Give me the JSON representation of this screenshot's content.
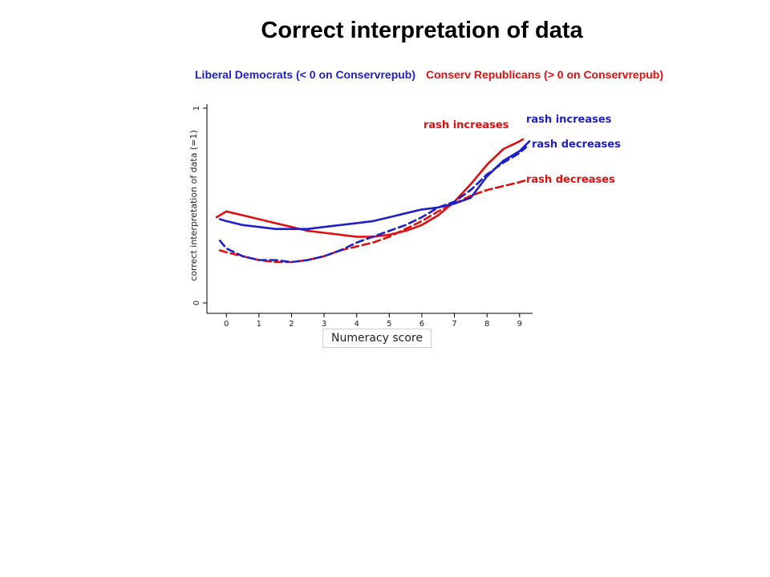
{
  "title": "Correct interpretation of data",
  "subtitles": {
    "democrats": "Liberal Democrats (< 0 on Conservrepub)",
    "republicans": "Conserv Republicans (> 0 on Conservrepub)"
  },
  "colors": {
    "democrats": "#2020c8",
    "republicans": "#e01010"
  },
  "chart_data": {
    "type": "line",
    "xlabel": "Numeracy score",
    "ylabel": "correct interpretation of data (=1)",
    "xlim": [
      -0.3,
      9.3
    ],
    "ylim": [
      0,
      1
    ],
    "xticks": [
      0,
      1,
      2,
      3,
      4,
      5,
      6,
      7,
      8,
      9
    ],
    "yticks": [
      0,
      1
    ],
    "series": [
      {
        "party": "republicans",
        "condition": "rash increases",
        "line_style": "solid",
        "points": [
          [
            -0.3,
            0.44
          ],
          [
            0,
            0.47
          ],
          [
            0.5,
            0.45
          ],
          [
            1,
            0.43
          ],
          [
            1.5,
            0.41
          ],
          [
            2,
            0.39
          ],
          [
            2.5,
            0.37
          ],
          [
            3,
            0.36
          ],
          [
            3.5,
            0.35
          ],
          [
            4,
            0.34
          ],
          [
            4.5,
            0.34
          ],
          [
            5,
            0.35
          ],
          [
            5.5,
            0.37
          ],
          [
            6,
            0.4
          ],
          [
            6.5,
            0.45
          ],
          [
            7,
            0.52
          ],
          [
            7.5,
            0.61
          ],
          [
            8,
            0.71
          ],
          [
            8.5,
            0.79
          ],
          [
            9,
            0.83
          ],
          [
            9.1,
            0.84
          ]
        ]
      },
      {
        "party": "republicans",
        "condition": "rash decreases",
        "line_style": "dashed",
        "points": [
          [
            -0.2,
            0.27
          ],
          [
            0,
            0.26
          ],
          [
            0.5,
            0.24
          ],
          [
            1,
            0.22
          ],
          [
            1.5,
            0.21
          ],
          [
            2,
            0.21
          ],
          [
            2.5,
            0.22
          ],
          [
            3,
            0.24
          ],
          [
            3.5,
            0.27
          ],
          [
            4,
            0.29
          ],
          [
            4.5,
            0.31
          ],
          [
            5,
            0.34
          ],
          [
            5.5,
            0.38
          ],
          [
            6,
            0.42
          ],
          [
            6.5,
            0.47
          ],
          [
            7,
            0.51
          ],
          [
            7.5,
            0.55
          ],
          [
            8,
            0.58
          ],
          [
            8.5,
            0.6
          ],
          [
            9,
            0.62
          ],
          [
            9.2,
            0.63
          ]
        ]
      },
      {
        "party": "democrats",
        "condition": "rash increases",
        "line_style": "solid",
        "points": [
          [
            -0.2,
            0.43
          ],
          [
            0,
            0.42
          ],
          [
            0.5,
            0.4
          ],
          [
            1,
            0.39
          ],
          [
            1.5,
            0.38
          ],
          [
            2,
            0.38
          ],
          [
            2.5,
            0.38
          ],
          [
            3,
            0.39
          ],
          [
            3.5,
            0.4
          ],
          [
            4,
            0.41
          ],
          [
            4.5,
            0.42
          ],
          [
            5,
            0.44
          ],
          [
            5.5,
            0.46
          ],
          [
            6,
            0.48
          ],
          [
            6.5,
            0.49
          ],
          [
            7,
            0.51
          ],
          [
            7.5,
            0.54
          ],
          [
            8,
            0.65
          ],
          [
            8.5,
            0.73
          ],
          [
            9,
            0.78
          ],
          [
            9.3,
            0.83
          ]
        ]
      },
      {
        "party": "democrats",
        "condition": "rash decreases",
        "line_style": "dashed",
        "points": [
          [
            -0.2,
            0.32
          ],
          [
            0,
            0.28
          ],
          [
            0.5,
            0.24
          ],
          [
            1,
            0.22
          ],
          [
            1.5,
            0.22
          ],
          [
            2,
            0.21
          ],
          [
            2.5,
            0.22
          ],
          [
            3,
            0.24
          ],
          [
            3.5,
            0.27
          ],
          [
            4,
            0.31
          ],
          [
            4.5,
            0.34
          ],
          [
            5,
            0.37
          ],
          [
            5.5,
            0.4
          ],
          [
            6,
            0.44
          ],
          [
            6.5,
            0.49
          ],
          [
            7,
            0.52
          ],
          [
            7.5,
            0.58
          ],
          [
            8,
            0.66
          ],
          [
            8.5,
            0.72
          ],
          [
            9,
            0.77
          ],
          [
            9.2,
            0.8
          ]
        ]
      }
    ],
    "annotations": [
      {
        "text": "rash increases",
        "party": "republicans",
        "series_index": 0
      },
      {
        "text": "rash decreases",
        "party": "republicans",
        "series_index": 1
      },
      {
        "text": "rash increases",
        "party": "democrats",
        "series_index": 2
      },
      {
        "text": "rash decreases",
        "party": "democrats",
        "series_index": 3
      }
    ]
  }
}
